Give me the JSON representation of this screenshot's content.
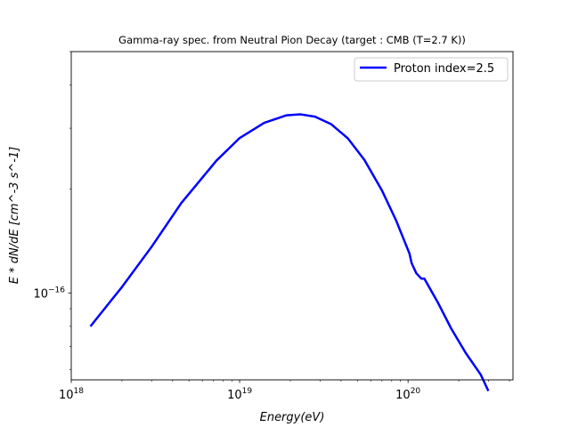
{
  "chart_data": {
    "type": "line",
    "title": "Gamma-ray spec. from Neutral Pion Decay (target : CMB (T=2.7 K))",
    "xlabel": "Energy(eV)",
    "ylabel": "E * dN/dE [cm^-3 s^-1]",
    "xscale": "log",
    "yscale": "log",
    "xlim": [
      1e+18,
      4.2e+20
    ],
    "ylim": [
      5.6e-17,
      5e-16
    ],
    "grid": false,
    "legend_position": "top-right",
    "x_ticks": [
      {
        "value": 1e+18,
        "base": "10",
        "exp": "18"
      },
      {
        "value": 1e+19,
        "base": "10",
        "exp": "19"
      },
      {
        "value": 1e+20,
        "base": "10",
        "exp": "20"
      }
    ],
    "y_ticks": [
      {
        "value": 1e-16,
        "base": "10",
        "exp": "−16"
      }
    ],
    "series": [
      {
        "name": "Proton index=2.5",
        "color": "#0000ff",
        "x": [
          1.3e+18,
          2e+18,
          3e+18,
          4.5e+18,
          7.3e+18,
          1e+19,
          1.4e+19,
          1.9e+19,
          2.3e+19,
          2.8e+19,
          3.5e+19,
          4.4e+19,
          5.5e+19,
          7e+19,
          8.5e+19,
          1.02e+20,
          1.05e+20,
          1.12e+20,
          1.2e+20,
          1.25e+20,
          1.5e+20,
          1.8e+20,
          2.2e+20,
          2.7e+20,
          3e+20
        ],
        "y": [
          8e-17,
          1.04e-16,
          1.36e-16,
          1.82e-16,
          2.42e-16,
          2.81e-16,
          3.11e-16,
          3.27e-16,
          3.29e-16,
          3.24e-16,
          3.08e-16,
          2.8e-16,
          2.43e-16,
          1.98e-16,
          1.62e-16,
          1.3e-16,
          1.22e-16,
          1.14e-16,
          1.1e-16,
          1.1e-16,
          9.4e-17,
          7.9e-17,
          6.7e-17,
          5.8e-17,
          5.2e-17
        ]
      }
    ]
  }
}
